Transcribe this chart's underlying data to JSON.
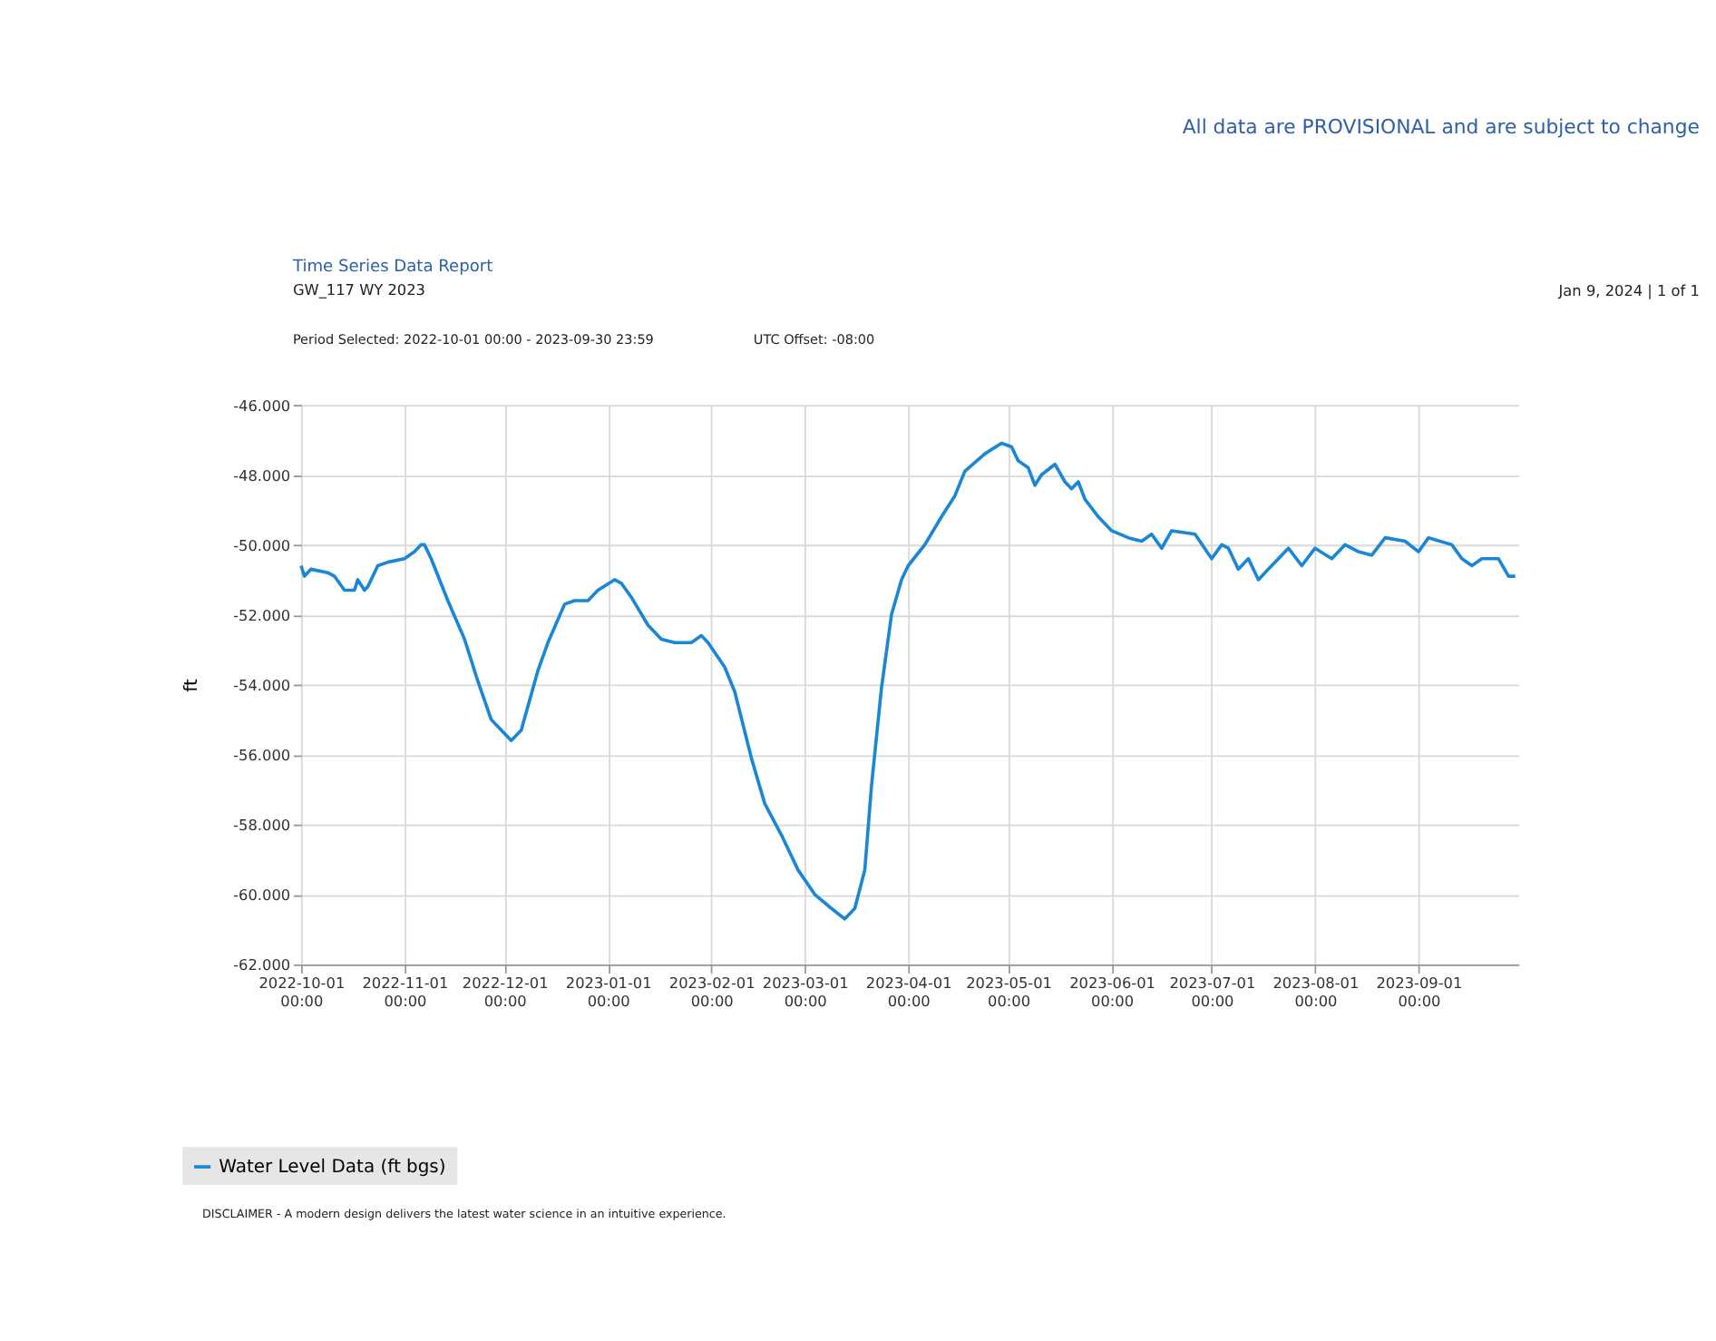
{
  "chart_data": {
    "type": "line",
    "title": "Time Series Data Report",
    "subtitle": "GW_117 WY 2023",
    "ylabel": "ft",
    "annotations": [
      "All data are PROVISIONAL and are subject to change",
      "Jan 9, 2024 | 1 of 1",
      "Period Selected: 2022-10-01 00:00 - 2023-09-30 23:59",
      "UTC Offset: -08:00",
      "DISCLAIMER - A modern design delivers the latest water science in an intuitive experience."
    ],
    "x": [
      "2022-10-01",
      "2022-10-02",
      "2022-10-04",
      "2022-10-09",
      "2022-10-11",
      "2022-10-14",
      "2022-10-17",
      "2022-10-18",
      "2022-10-20",
      "2022-10-21",
      "2022-10-24",
      "2022-10-27",
      "2022-11-01",
      "2022-11-04",
      "2022-11-06",
      "2022-11-07",
      "2022-11-09",
      "2022-11-14",
      "2022-11-19",
      "2022-11-23",
      "2022-11-27",
      "2022-12-01",
      "2022-12-03",
      "2022-12-06",
      "2022-12-11",
      "2022-12-14",
      "2022-12-19",
      "2022-12-22",
      "2022-12-26",
      "2022-12-29",
      "2023-01-03",
      "2023-01-05",
      "2023-01-08",
      "2023-01-13",
      "2023-01-17",
      "2023-01-21",
      "2023-01-26",
      "2023-01-29",
      "2023-01-31",
      "2023-02-05",
      "2023-02-08",
      "2023-02-13",
      "2023-02-17",
      "2023-02-22",
      "2023-02-27",
      "2023-03-04",
      "2023-03-09",
      "2023-03-13",
      "2023-03-16",
      "2023-03-19",
      "2023-03-21",
      "2023-03-24",
      "2023-03-27",
      "2023-03-30",
      "2023-04-01",
      "2023-04-06",
      "2023-04-11",
      "2023-04-15",
      "2023-04-18",
      "2023-04-24",
      "2023-04-29",
      "2023-05-02",
      "2023-05-04",
      "2023-05-07",
      "2023-05-09",
      "2023-05-11",
      "2023-05-15",
      "2023-05-18",
      "2023-05-20",
      "2023-05-22",
      "2023-05-24",
      "2023-05-28",
      "2023-06-01",
      "2023-06-06",
      "2023-06-10",
      "2023-06-13",
      "2023-06-16",
      "2023-06-19",
      "2023-06-26",
      "2023-07-01",
      "2023-07-04",
      "2023-07-06",
      "2023-07-09",
      "2023-07-12",
      "2023-07-15",
      "2023-07-18",
      "2023-07-24",
      "2023-07-28",
      "2023-08-01",
      "2023-08-06",
      "2023-08-10",
      "2023-08-14",
      "2023-08-18",
      "2023-08-22",
      "2023-08-28",
      "2023-09-01",
      "2023-09-04",
      "2023-09-11",
      "2023-09-14",
      "2023-09-17",
      "2023-09-20",
      "2023-09-25",
      "2023-09-28",
      "2023-09-30"
    ],
    "series": [
      {
        "name": "Water Level Data (ft bgs)",
        "color": "#1a87d6",
        "values": [
          -50.6,
          -50.9,
          -50.7,
          -50.8,
          -50.9,
          -51.3,
          -51.3,
          -51.0,
          -51.3,
          -51.2,
          -50.6,
          -50.5,
          -50.4,
          -50.2,
          -50.0,
          -50.0,
          -50.4,
          -51.6,
          -52.7,
          -53.9,
          -55.0,
          -55.4,
          -55.6,
          -55.3,
          -53.6,
          -52.8,
          -51.7,
          -51.6,
          -51.6,
          -51.3,
          -51.0,
          -51.1,
          -51.5,
          -52.3,
          -52.7,
          -52.8,
          -52.8,
          -52.6,
          -52.8,
          -53.5,
          -54.2,
          -56.1,
          -57.4,
          -58.3,
          -59.3,
          -60.0,
          -60.4,
          -60.7,
          -60.4,
          -59.3,
          -56.9,
          -54.1,
          -52.0,
          -51.0,
          -50.6,
          -50.0,
          -49.2,
          -48.6,
          -47.9,
          -47.4,
          -47.1,
          -47.2,
          -47.6,
          -47.8,
          -48.3,
          -48.0,
          -47.7,
          -48.2,
          -48.4,
          -48.2,
          -48.7,
          -49.2,
          -49.6,
          -49.8,
          -49.9,
          -49.7,
          -50.1,
          -49.6,
          -49.7,
          -50.4,
          -50.0,
          -50.1,
          -50.7,
          -50.4,
          -51.0,
          -50.7,
          -50.1,
          -50.6,
          -50.1,
          -50.4,
          -50.0,
          -50.2,
          -50.3,
          -49.8,
          -49.9,
          -50.2,
          -49.8,
          -50.0,
          -50.4,
          -50.6,
          -50.4,
          -50.4,
          -50.9,
          -50.9
        ]
      }
    ],
    "xlim": [
      "2022-10-01",
      "2023-09-30T23:59"
    ],
    "xticks": [
      {
        "value": "2022-10-01",
        "label": "2022-10-01 00:00"
      },
      {
        "value": "2022-11-01",
        "label": "2022-11-01 00:00"
      },
      {
        "value": "2022-12-01",
        "label": "2022-12-01 00:00"
      },
      {
        "value": "2023-01-01",
        "label": "2023-01-01 00:00"
      },
      {
        "value": "2023-02-01",
        "label": "2023-02-01 00:00"
      },
      {
        "value": "2023-03-01",
        "label": "2023-03-01 00:00"
      },
      {
        "value": "2023-04-01",
        "label": "2023-04-01 00:00"
      },
      {
        "value": "2023-05-01",
        "label": "2023-05-01 00:00"
      },
      {
        "value": "2023-06-01",
        "label": "2023-06-01 00:00"
      },
      {
        "value": "2023-07-01",
        "label": "2023-07-01 00:00"
      },
      {
        "value": "2023-08-01",
        "label": "2023-08-01 00:00"
      },
      {
        "value": "2023-09-01",
        "label": "2023-09-01 00:00"
      }
    ],
    "ylim": [
      -62,
      -46
    ],
    "yticks": [
      {
        "value": -62,
        "label": "-62.000"
      },
      {
        "value": -60,
        "label": "-60.000"
      },
      {
        "value": -58,
        "label": "-58.000"
      },
      {
        "value": -56,
        "label": "-56.000"
      },
      {
        "value": -54,
        "label": "-54.000"
      },
      {
        "value": -52,
        "label": "-52.000"
      },
      {
        "value": -50,
        "label": "-50.000"
      },
      {
        "value": -48,
        "label": "-48.000"
      },
      {
        "value": -46,
        "label": "-46.000"
      }
    ],
    "grid": true,
    "legend": "bottom left",
    "marker": "none",
    "line_style": "solid"
  }
}
